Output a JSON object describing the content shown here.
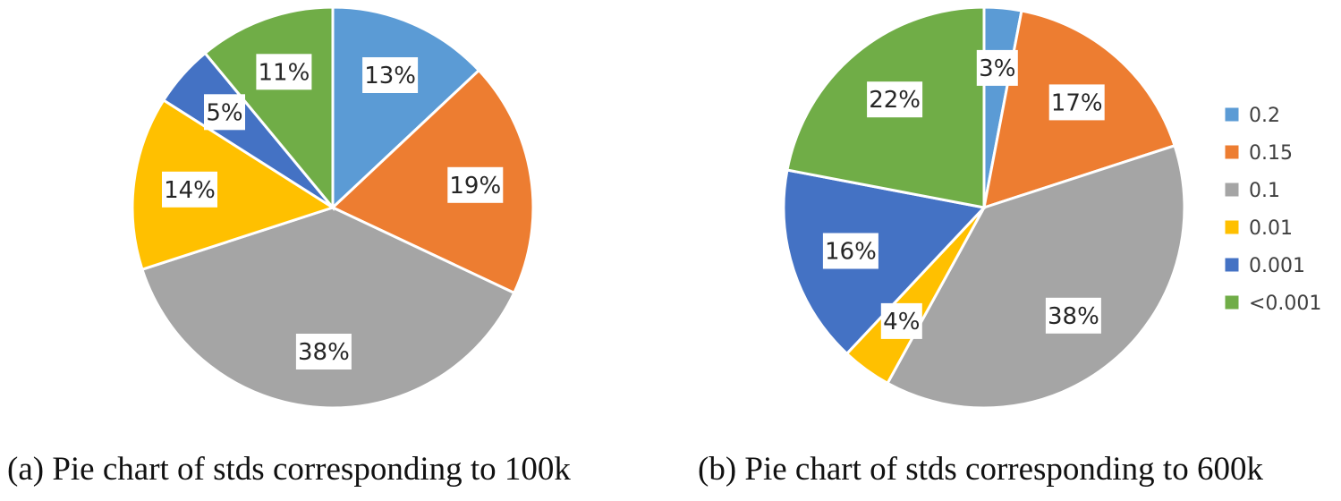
{
  "colors": {
    "0.2": "#5B9BD5",
    "0.15": "#ED7D31",
    "0.1": "#A5A5A5",
    "0.01": "#FFC000",
    "0.001": "#4472C4",
    "<0.001": "#70AD47"
  },
  "chart_data": [
    {
      "type": "pie",
      "caption": "(a) Pie chart of stds corresponding to 100k",
      "categories": [
        "0.2",
        "0.15",
        "0.1",
        "0.01",
        "0.001",
        "<0.001"
      ],
      "values": [
        13,
        19,
        38,
        14,
        5,
        11
      ],
      "labels": [
        "13%",
        "19%",
        "38%",
        "14%",
        "5%",
        "11%"
      ],
      "legend": null
    },
    {
      "type": "pie",
      "caption": "(b) Pie chart of stds corresponding to 600k",
      "categories": [
        "0.2",
        "0.15",
        "0.1",
        "0.01",
        "0.001",
        "<0.001"
      ],
      "values": [
        3,
        17,
        38,
        4,
        16,
        22
      ],
      "labels": [
        "3%",
        "17%",
        "38%",
        "4%",
        "16%",
        "22%"
      ],
      "legend": {
        "position": "right",
        "entries": [
          "0.2",
          "0.15",
          "0.1",
          "0.01",
          "0.001",
          "<0.001"
        ]
      }
    }
  ]
}
